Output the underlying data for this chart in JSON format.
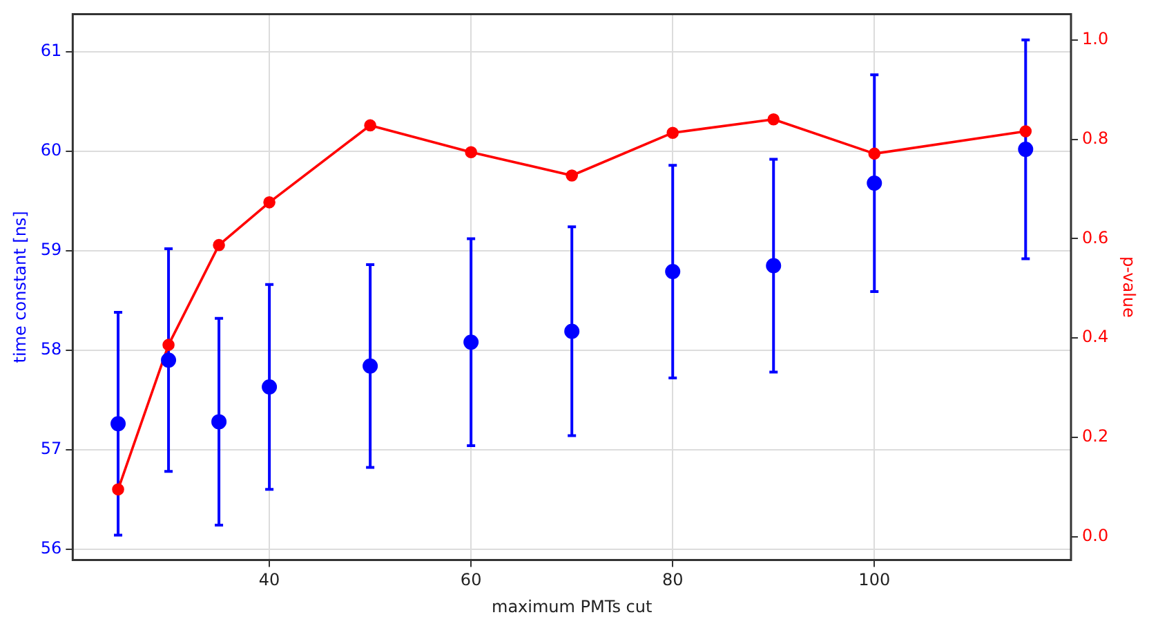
{
  "chart_data": {
    "type": "scatter",
    "xlabel": "maximum PMTs cut",
    "ylabel": "time constant [ns]",
    "y2label": "p-value",
    "x": [
      25,
      30,
      35,
      40,
      50,
      60,
      70,
      80,
      90,
      100,
      115
    ],
    "series": [
      {
        "color": "#0000ff",
        "values": [
          57.26,
          57.9,
          57.28,
          57.63,
          57.84,
          58.08,
          58.19,
          58.79,
          58.85,
          59.68,
          60.02
        ],
        "errors": [
          1.12,
          1.12,
          1.04,
          1.03,
          1.02,
          1.04,
          1.05,
          1.07,
          1.07,
          1.09,
          1.1
        ]
      },
      {
        "type": "line",
        "axis": "y2",
        "color": "#ff0000",
        "values": [
          0.095,
          0.386,
          0.587,
          0.673,
          0.828,
          0.774,
          0.727,
          0.813,
          0.84,
          0.771,
          0.816
        ]
      }
    ],
    "xlim": [
      20.5,
      119.5
    ],
    "xticks": [
      40,
      60,
      80,
      100
    ],
    "ylim": [
      55.89,
      61.38
    ],
    "yticks": [
      56,
      57,
      58,
      59,
      60,
      61
    ],
    "y2lim": [
      -0.047,
      1.052
    ],
    "y2ticks": [
      {
        "value": 0,
        "label": "0.0"
      },
      {
        "value": 0.2,
        "label": "0.2"
      },
      {
        "value": 0.4,
        "label": "0.4"
      },
      {
        "value": 0.6,
        "label": "0.6"
      },
      {
        "value": 0.8,
        "label": "0.8"
      },
      {
        "value": 1,
        "label": "1.0"
      }
    ],
    "grid": true,
    "marker": "circle",
    "line_style": "solid"
  }
}
